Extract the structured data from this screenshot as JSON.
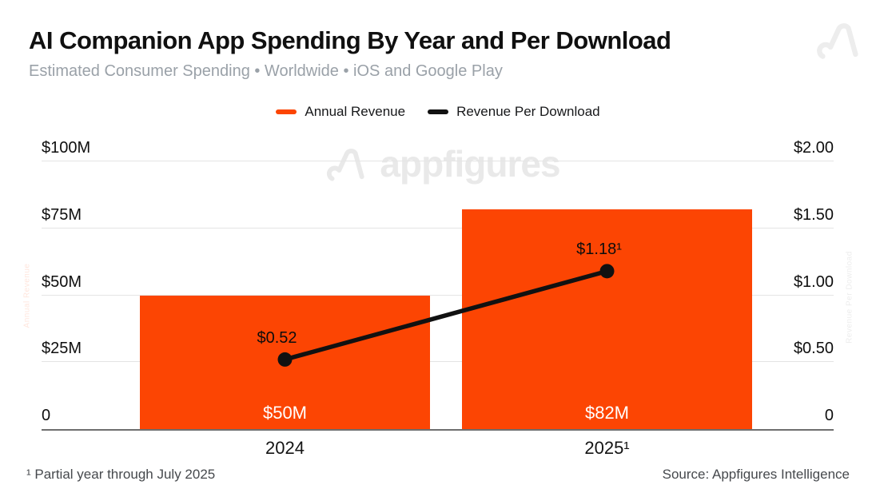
{
  "header": {
    "title": "AI Companion App Spending By Year and Per Download",
    "subtitle": "Estimated Consumer Spending • Worldwide • iOS and Google Play"
  },
  "legend": [
    {
      "label": "Annual Revenue",
      "color": "#FC4503"
    },
    {
      "label": "Revenue Per Download",
      "color": "#111111"
    }
  ],
  "watermark": {
    "text": "appfigures"
  },
  "footer": {
    "footnote": "¹ Partial year through July 2025",
    "source": "Source: Appfigures Intelligence"
  },
  "chart_data": {
    "type": "bar",
    "subtype": "bar-and-line-dual-axis",
    "categories": [
      "2024",
      "2025¹"
    ],
    "series": [
      {
        "name": "Annual Revenue",
        "type": "bar",
        "axis": "left",
        "unit": "USD millions",
        "values": [
          50,
          82
        ],
        "labels": [
          "$50M",
          "$82M"
        ],
        "color": "#FC4503"
      },
      {
        "name": "Revenue Per Download",
        "type": "line",
        "axis": "right",
        "unit": "USD",
        "values": [
          0.52,
          1.18
        ],
        "labels": [
          "$0.52",
          "$1.18¹"
        ],
        "color": "#111111"
      }
    ],
    "left_axis": {
      "title": "Annual Revenue",
      "max": 100,
      "ticks": [
        {
          "label": "$100M",
          "value": 100
        },
        {
          "label": "$75M",
          "value": 75
        },
        {
          "label": "$50M",
          "value": 50
        },
        {
          "label": "$25M",
          "value": 25
        },
        {
          "label": "0",
          "value": 0
        }
      ]
    },
    "right_axis": {
      "title": "Revenue Per Download",
      "max": 2,
      "ticks": [
        {
          "label": "$2.00",
          "value": 2
        },
        {
          "label": "$1.50",
          "value": 1.5
        },
        {
          "label": "$1.00",
          "value": 1
        },
        {
          "label": "$0.50",
          "value": 0.5
        },
        {
          "label": "0",
          "value": 0
        }
      ]
    },
    "grid": true,
    "legend_position": "top"
  }
}
